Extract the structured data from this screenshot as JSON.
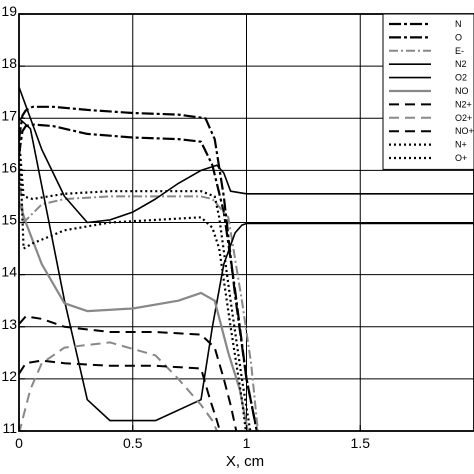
{
  "chart_data": {
    "type": "line",
    "title": "",
    "xlabel": "X, cm",
    "ylabel": "",
    "xlim": [
      0,
      2
    ],
    "ylim": [
      11,
      19
    ],
    "y_scale": "log10",
    "x_ticks": [
      0,
      0.5,
      1,
      1.5
    ],
    "x_tick_labels": [
      "0",
      "0.5",
      "1",
      "1.5"
    ],
    "y_ticks": [
      11,
      12,
      13,
      14,
      15,
      16,
      17,
      18,
      19
    ],
    "y_tick_labels": [
      "11",
      "12",
      "13",
      "14",
      "15",
      "16",
      "17",
      "18",
      "19"
    ],
    "grid": true,
    "legend_position": "top-right",
    "series": [
      {
        "name": "N",
        "dash": "12,3,3,3",
        "width": 2.2,
        "color": "#000000",
        "x": [
          0.0,
          0.015,
          0.03,
          0.06,
          0.15,
          0.3,
          0.5,
          0.7,
          0.82,
          0.86,
          0.9,
          0.95,
          1.0,
          1.05
        ],
        "y": [
          16.6,
          17.05,
          17.15,
          17.22,
          17.22,
          17.16,
          17.1,
          17.07,
          17.0,
          16.6,
          15.5,
          13.6,
          12.0,
          10.9
        ]
      },
      {
        "name": "O",
        "dash": "12,3,3,3",
        "width": 2.2,
        "color": "#000000",
        "x": [
          0.0,
          0.015,
          0.03,
          0.06,
          0.15,
          0.3,
          0.5,
          0.7,
          0.8,
          0.85,
          0.9,
          0.95,
          1.0,
          1.05
        ],
        "y": [
          16.3,
          16.75,
          16.85,
          16.88,
          16.85,
          16.7,
          16.63,
          16.6,
          16.55,
          16.1,
          15.2,
          13.7,
          12.0,
          10.9
        ]
      },
      {
        "name": "E-",
        "dash": "9,3,2,3",
        "width": 2.0,
        "color": "#888888",
        "x": [
          0.0,
          0.02,
          0.1,
          0.2,
          0.4,
          0.6,
          0.8,
          0.85,
          0.92,
          0.98,
          1.02,
          1.05
        ],
        "y": [
          16.0,
          15.0,
          15.35,
          15.45,
          15.5,
          15.5,
          15.5,
          15.45,
          15.1,
          13.5,
          12.3,
          11.0
        ]
      },
      {
        "name": "N2",
        "dash": "",
        "width": 1.6,
        "color": "#000000",
        "x": [
          0.0,
          0.1,
          0.2,
          0.3,
          0.4,
          0.5,
          0.6,
          0.7,
          0.8,
          0.87,
          0.9,
          0.93,
          1.0,
          1.5,
          2.0
        ],
        "y": [
          17.6,
          16.4,
          15.5,
          15.0,
          15.05,
          15.2,
          15.45,
          15.75,
          16.0,
          16.1,
          15.95,
          15.6,
          15.55,
          15.55,
          15.55
        ]
      },
      {
        "name": "O2",
        "dash": "",
        "width": 1.6,
        "color": "#000000",
        "x": [
          0.0,
          0.05,
          0.1,
          0.2,
          0.3,
          0.4,
          0.6,
          0.8,
          0.85,
          0.9,
          0.95,
          0.98,
          1.0,
          1.5,
          2.0
        ],
        "y": [
          17.0,
          16.8,
          15.7,
          13.5,
          11.6,
          11.2,
          11.2,
          11.6,
          13.0,
          14.2,
          14.8,
          14.95,
          14.98,
          14.98,
          14.98
        ]
      },
      {
        "name": "NO",
        "dash": "",
        "width": 2.2,
        "color": "#888888",
        "x": [
          0.0,
          0.03,
          0.1,
          0.2,
          0.3,
          0.5,
          0.7,
          0.8,
          0.86,
          0.92,
          0.97,
          1.01
        ],
        "y": [
          15.4,
          15.0,
          14.2,
          13.45,
          13.3,
          13.35,
          13.5,
          13.65,
          13.5,
          12.5,
          11.8,
          10.9
        ]
      },
      {
        "name": "N2+",
        "dash": "10,6",
        "width": 2.0,
        "color": "#000000",
        "x": [
          0.0,
          0.03,
          0.1,
          0.2,
          0.4,
          0.6,
          0.8,
          0.86,
          0.9,
          0.93,
          0.96
        ],
        "y": [
          13.05,
          13.2,
          13.15,
          13.0,
          12.9,
          12.9,
          12.85,
          12.6,
          12.0,
          11.5,
          10.9
        ]
      },
      {
        "name": "O2+",
        "dash": "10,6",
        "width": 2.0,
        "color": "#888888",
        "x": [
          0.0,
          0.02,
          0.05,
          0.1,
          0.2,
          0.4,
          0.6,
          0.7,
          0.8,
          0.85,
          0.88
        ],
        "y": [
          10.95,
          11.3,
          11.8,
          12.3,
          12.6,
          12.7,
          12.45,
          12.0,
          11.5,
          11.2,
          10.9
        ]
      },
      {
        "name": "NO+",
        "dash": "10,6",
        "width": 2.0,
        "color": "#000000",
        "x": [
          0.0,
          0.03,
          0.1,
          0.2,
          0.4,
          0.6,
          0.8,
          0.84,
          0.87,
          0.89
        ],
        "y": [
          12.1,
          12.3,
          12.35,
          12.3,
          12.25,
          12.25,
          12.2,
          11.6,
          11.2,
          10.9
        ]
      },
      {
        "name": "N+",
        "dash": "2,3",
        "width": 2.2,
        "color": "#000000",
        "x": [
          0.0,
          0.02,
          0.06,
          0.2,
          0.4,
          0.6,
          0.8,
          0.86,
          0.88,
          0.93,
          0.98,
          1.02
        ],
        "y": [
          16.6,
          15.5,
          15.45,
          15.55,
          15.6,
          15.6,
          15.6,
          15.5,
          15.1,
          13.5,
          12.0,
          10.9
        ]
      },
      {
        "name": "O+",
        "dash": "2,3",
        "width": 2.2,
        "color": "#000000",
        "x": [
          0.0,
          0.02,
          0.06,
          0.2,
          0.4,
          0.6,
          0.8,
          0.85,
          0.88,
          0.93,
          0.98,
          1.0
        ],
        "y": [
          16.8,
          14.5,
          14.6,
          14.85,
          15.0,
          15.05,
          15.1,
          14.9,
          14.5,
          13.0,
          11.6,
          10.9
        ]
      }
    ]
  }
}
